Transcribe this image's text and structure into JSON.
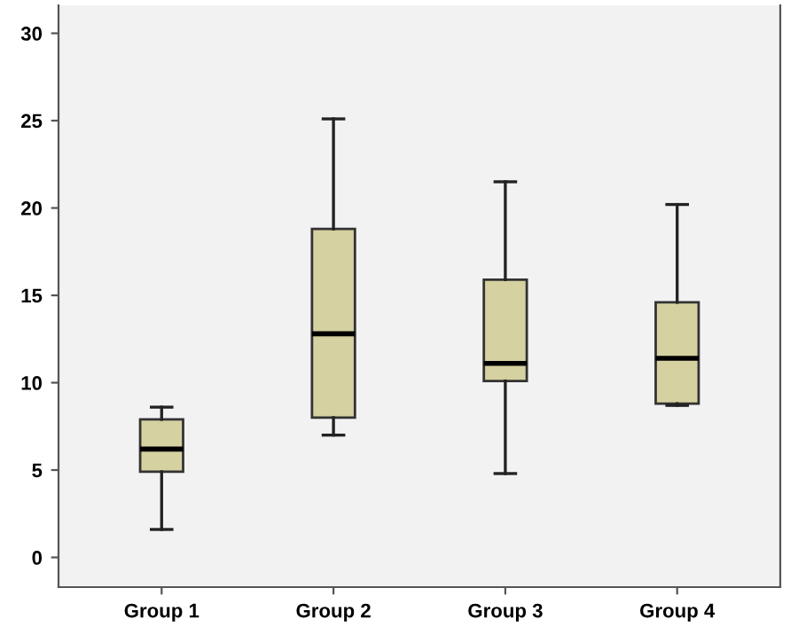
{
  "chart_data": {
    "type": "box",
    "categories": [
      "Group 1",
      "Group 2",
      "Group 3",
      "Group 4"
    ],
    "color": "#d6d1a0",
    "ylim": [
      -1.7,
      31.6
    ],
    "yticks": [
      0,
      5,
      10,
      15,
      20,
      25,
      30
    ],
    "grid": false,
    "legend": false,
    "boxes": [
      {
        "low": 1.6,
        "q1": 4.9,
        "median": 6.2,
        "q3": 7.9,
        "high": 8.6
      },
      {
        "low": 7.0,
        "q1": 8.0,
        "median": 12.8,
        "q3": 18.8,
        "high": 25.1
      },
      {
        "low": 4.8,
        "q1": 10.1,
        "median": 11.1,
        "q3": 15.9,
        "high": 21.5
      },
      {
        "low": 8.7,
        "q1": 8.8,
        "median": 11.4,
        "q3": 14.6,
        "high": 20.2
      }
    ]
  }
}
